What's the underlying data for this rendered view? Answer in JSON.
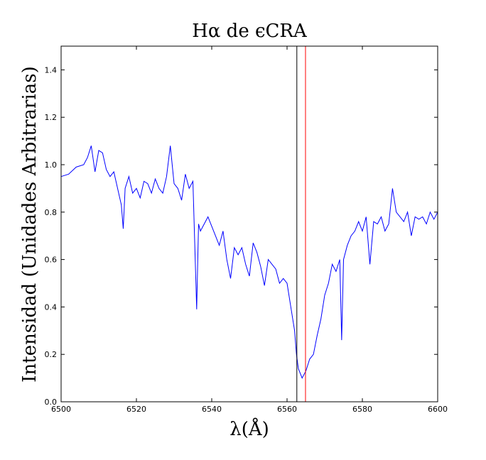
{
  "chart_data": {
    "type": "line",
    "title": "Hα de ϵCRA",
    "xlabel": "λ(Å)",
    "ylabel": "Intensidad (Unidades Arbitrarias)",
    "x": [
      6500,
      6502,
      6504,
      6506,
      6507,
      6508,
      6509,
      6510,
      6511,
      6512,
      6513,
      6514,
      6515,
      6516,
      6516.5,
      6517,
      6518,
      6519,
      6520,
      6521,
      6522,
      6523,
      6524,
      6525,
      6526,
      6527,
      6528,
      6529,
      6530,
      6531,
      6532,
      6533,
      6534,
      6535,
      6536,
      6536.5,
      6537,
      6538,
      6539,
      6540,
      6541,
      6542,
      6543,
      6544,
      6545,
      6546,
      6547,
      6548,
      6549,
      6550,
      6551,
      6552,
      6553,
      6554,
      6555,
      6556,
      6557,
      6558,
      6559,
      6560,
      6561,
      6562,
      6562.5,
      6563,
      6564,
      6565,
      6566,
      6567,
      6568,
      6569,
      6570,
      6571,
      6572,
      6573,
      6574,
      6574.5,
      6575,
      6576,
      6577,
      6578,
      6579,
      6580,
      6581,
      6582,
      6583,
      6584,
      6585,
      6586,
      6587,
      6588,
      6589,
      6590,
      6591,
      6592,
      6593,
      6594,
      6595,
      6596,
      6597,
      6598,
      6599,
      6600
    ],
    "series": [
      {
        "color": "#0000ff",
        "values": [
          0.95,
          0.96,
          0.99,
          1.0,
          1.03,
          1.08,
          0.97,
          1.06,
          1.05,
          0.98,
          0.95,
          0.97,
          0.9,
          0.83,
          0.73,
          0.9,
          0.95,
          0.88,
          0.9,
          0.86,
          0.93,
          0.92,
          0.88,
          0.94,
          0.9,
          0.88,
          0.95,
          1.08,
          0.92,
          0.9,
          0.85,
          0.96,
          0.9,
          0.93,
          0.39,
          0.75,
          0.72,
          0.75,
          0.78,
          0.74,
          0.7,
          0.66,
          0.72,
          0.6,
          0.52,
          0.65,
          0.62,
          0.65,
          0.58,
          0.53,
          0.67,
          0.63,
          0.57,
          0.49,
          0.6,
          0.58,
          0.56,
          0.5,
          0.52,
          0.5,
          0.4,
          0.3,
          0.2,
          0.14,
          0.1,
          0.13,
          0.18,
          0.2,
          0.28,
          0.35,
          0.45,
          0.5,
          0.58,
          0.55,
          0.6,
          0.26,
          0.6,
          0.66,
          0.7,
          0.72,
          0.76,
          0.72,
          0.78,
          0.58,
          0.76,
          0.75,
          0.78,
          0.72,
          0.75,
          0.9,
          0.8,
          0.78,
          0.76,
          0.8,
          0.7,
          0.78,
          0.77,
          0.78,
          0.75,
          0.8,
          0.77,
          0.8
        ]
      }
    ],
    "vlines": [
      {
        "x": 6562.6,
        "color": "#000000"
      },
      {
        "x": 6564.9,
        "color": "#ff0000"
      }
    ],
    "xlim": [
      6500,
      6600
    ],
    "xticks": [
      6500,
      6520,
      6540,
      6560,
      6580,
      6600
    ],
    "ylim": [
      0,
      1.5
    ],
    "yticks": [
      {
        "value": 0,
        "label": "0.0"
      },
      0.2,
      0.4,
      0.6,
      0.8,
      {
        "value": 1,
        "label": "1.0"
      },
      1.2,
      1.4
    ]
  }
}
